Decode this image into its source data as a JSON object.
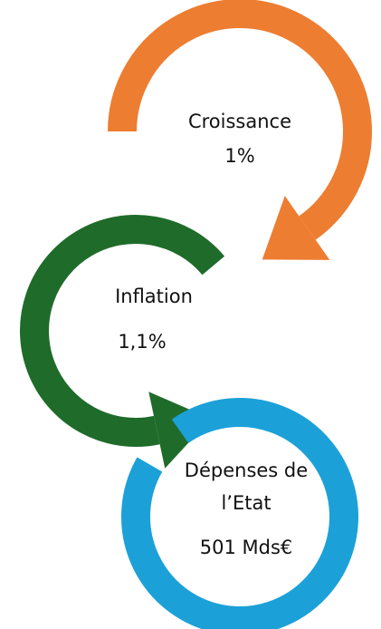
{
  "nodes": [
    {
      "label": "Croissance",
      "value": "1%"
    },
    {
      "label": "Inflation",
      "value": "1,1%"
    },
    {
      "label": "Dépenses de",
      "label2": "l’Etat",
      "value": "501 Mds€"
    }
  ]
}
